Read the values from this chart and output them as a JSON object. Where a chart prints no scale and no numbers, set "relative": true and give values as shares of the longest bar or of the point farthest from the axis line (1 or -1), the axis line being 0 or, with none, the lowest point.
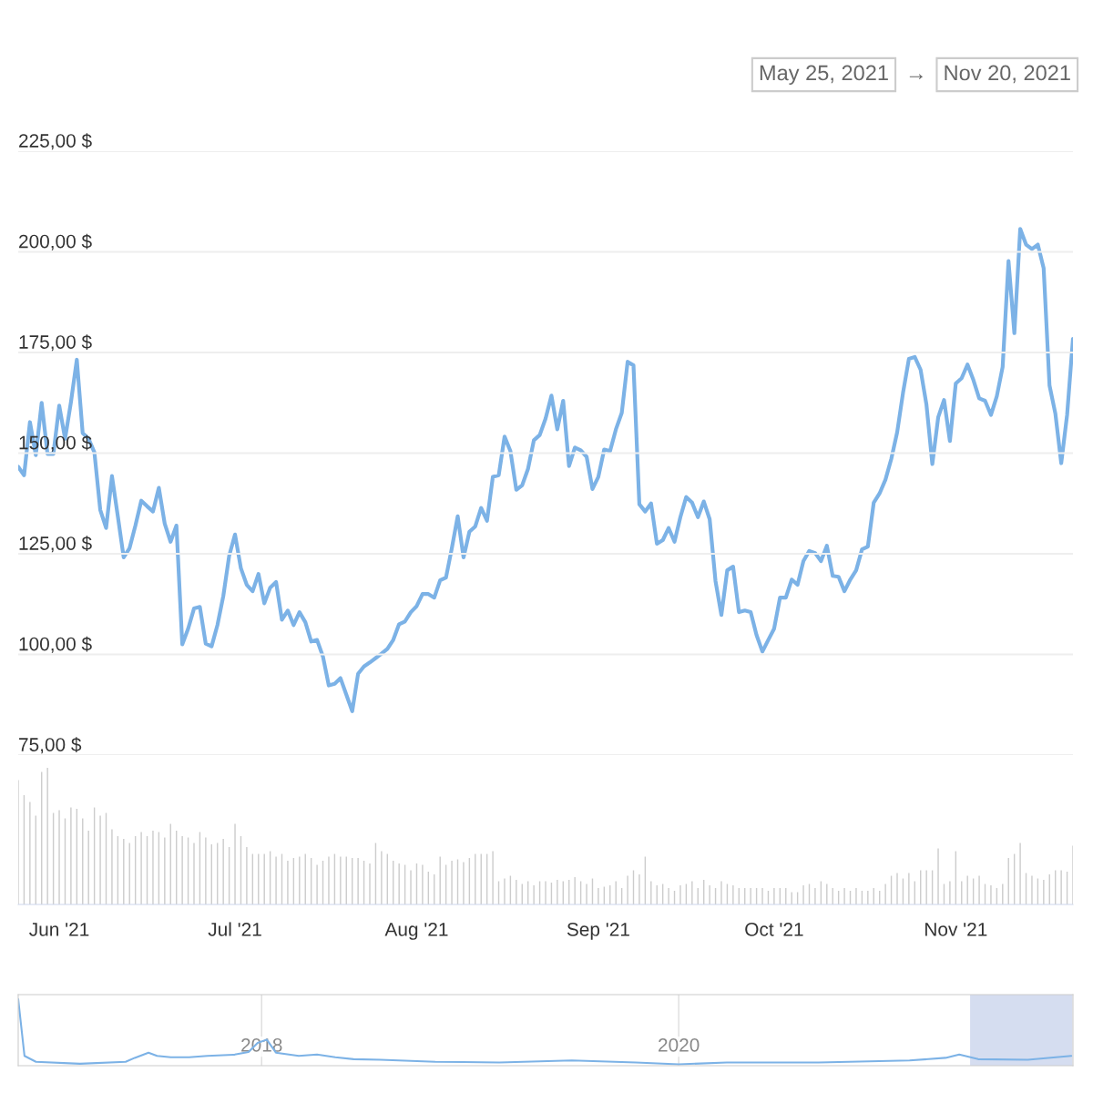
{
  "chart_data": [
    {
      "type": "line",
      "annotations": [
        "May 25, 2021",
        "→",
        "Nov 20, 2021"
      ],
      "x": [
        "2021-05-25",
        "2021-05-26",
        "2021-05-27",
        "2021-05-28",
        "2021-05-29",
        "2021-05-30",
        "2021-05-31",
        "2021-06-01",
        "2021-06-02",
        "2021-06-03",
        "2021-06-04",
        "2021-06-05",
        "2021-06-06",
        "2021-06-07",
        "2021-06-08",
        "2021-06-09",
        "2021-06-10",
        "2021-06-11",
        "2021-06-12",
        "2021-06-13",
        "2021-06-14",
        "2021-06-15",
        "2021-06-16",
        "2021-06-17",
        "2021-06-18",
        "2021-06-19",
        "2021-06-20",
        "2021-06-21",
        "2021-06-22",
        "2021-06-23",
        "2021-06-24",
        "2021-06-25",
        "2021-06-26",
        "2021-06-27",
        "2021-06-28",
        "2021-06-29",
        "2021-06-30",
        "2021-07-01",
        "2021-07-02",
        "2021-07-03",
        "2021-07-04",
        "2021-07-05",
        "2021-07-06",
        "2021-07-07",
        "2021-07-08",
        "2021-07-09",
        "2021-07-10",
        "2021-07-11",
        "2021-07-12",
        "2021-07-13",
        "2021-07-14",
        "2021-07-15",
        "2021-07-16",
        "2021-07-17",
        "2021-07-18",
        "2021-07-19",
        "2021-07-20",
        "2021-07-21",
        "2021-07-22",
        "2021-07-23",
        "2021-07-24",
        "2021-07-25",
        "2021-07-26",
        "2021-07-27",
        "2021-07-28",
        "2021-07-29",
        "2021-07-30",
        "2021-07-31",
        "2021-08-01",
        "2021-08-02",
        "2021-08-03",
        "2021-08-04",
        "2021-08-05",
        "2021-08-06",
        "2021-08-07",
        "2021-08-08",
        "2021-08-09",
        "2021-08-10",
        "2021-08-11",
        "2021-08-12",
        "2021-08-13",
        "2021-08-14",
        "2021-08-15",
        "2021-08-16",
        "2021-08-17",
        "2021-08-18",
        "2021-08-19",
        "2021-08-20",
        "2021-08-21",
        "2021-08-22",
        "2021-08-23",
        "2021-08-24",
        "2021-08-25",
        "2021-08-26",
        "2021-08-27",
        "2021-08-28",
        "2021-08-29",
        "2021-08-30",
        "2021-08-31",
        "2021-09-01",
        "2021-09-02",
        "2021-09-03",
        "2021-09-04",
        "2021-09-05",
        "2021-09-06",
        "2021-09-07",
        "2021-09-08",
        "2021-09-09",
        "2021-09-10",
        "2021-09-11",
        "2021-09-12",
        "2021-09-13",
        "2021-09-14",
        "2021-09-15",
        "2021-09-16",
        "2021-09-17",
        "2021-09-18",
        "2021-09-19",
        "2021-09-20",
        "2021-09-21",
        "2021-09-22",
        "2021-09-23",
        "2021-09-24",
        "2021-09-25",
        "2021-09-26",
        "2021-09-27",
        "2021-09-28",
        "2021-09-29",
        "2021-09-30",
        "2021-10-01",
        "2021-10-02",
        "2021-10-03",
        "2021-10-04",
        "2021-10-05",
        "2021-10-06",
        "2021-10-07",
        "2021-10-08",
        "2021-10-09",
        "2021-10-10",
        "2021-10-11",
        "2021-10-12",
        "2021-10-13",
        "2021-10-14",
        "2021-10-15",
        "2021-10-16",
        "2021-10-17",
        "2021-10-18",
        "2021-10-19",
        "2021-10-20",
        "2021-10-21",
        "2021-10-22",
        "2021-10-23",
        "2021-10-24",
        "2021-10-25",
        "2021-10-26",
        "2021-10-27",
        "2021-10-28",
        "2021-10-29",
        "2021-10-30",
        "2021-10-31",
        "2021-11-01",
        "2021-11-02",
        "2021-11-03",
        "2021-11-04",
        "2021-11-05",
        "2021-11-06",
        "2021-11-07",
        "2021-11-08",
        "2021-11-09",
        "2021-11-10",
        "2021-11-11",
        "2021-11-12",
        "2021-11-13",
        "2021-11-14",
        "2021-11-15",
        "2021-11-16",
        "2021-11-17",
        "2021-11-18",
        "2021-11-19",
        "2021-11-20",
        "2021-11-21"
      ],
      "series": [
        {
          "color": "#7cb2e6",
          "values": [
            146.6,
            144.5,
            157.7,
            149.5,
            162.5,
            149.8,
            149.8,
            161.8,
            153.6,
            162.7,
            173.2,
            155,
            153.6,
            150.2,
            135.9,
            131.4,
            144.3,
            134.3,
            124.1,
            126.4,
            132,
            138.2,
            136.8,
            135.5,
            141.4,
            132.5,
            128,
            132,
            102.5,
            106.4,
            111.4,
            111.8,
            102.7,
            102,
            107.3,
            114.5,
            124.5,
            129.8,
            121.4,
            117.3,
            115.7,
            120,
            112.7,
            116.6,
            118,
            108.6,
            110.9,
            107.3,
            110.5,
            108,
            103.2,
            103.6,
            99.5,
            92.3,
            92.7,
            94.1,
            90,
            85.9,
            95.2,
            97,
            98,
            99.1,
            100.2,
            101.4,
            103.6,
            107.5,
            108.2,
            110.5,
            112,
            115,
            115,
            114.1,
            118.4,
            119.1,
            126.4,
            134.3,
            124.1,
            130.5,
            131.8,
            136.4,
            133.2,
            144.1,
            144.5,
            154.1,
            150.5,
            140.9,
            142,
            146.1,
            153.2,
            154.5,
            158.6,
            164.3,
            155.9,
            163,
            146.8,
            151.4,
            150.7,
            149.1,
            141.1,
            144.1,
            150.9,
            150.5,
            155.9,
            160,
            172.7,
            171.8,
            137.3,
            135.5,
            137.5,
            127.5,
            128.4,
            131.4,
            128,
            134.1,
            139.1,
            137.7,
            134.1,
            138,
            133.6,
            118.2,
            109.8,
            120.9,
            121.8,
            110.5,
            110.9,
            110.5,
            104.8,
            100.7,
            103.6,
            106.4,
            114.1,
            114.1,
            118.6,
            117.3,
            123.2,
            125.7,
            125.2,
            123.2,
            127,
            119.5,
            119.3,
            115.7,
            118.6,
            120.9,
            126.1,
            126.8,
            137.7,
            140,
            143.4,
            148.6,
            155.2,
            165,
            173.4,
            173.9,
            170.7,
            162,
            147.3,
            158.9,
            163.2,
            153,
            167.3,
            168.6,
            172,
            168.2,
            163.6,
            163,
            159.5,
            164.1,
            171.4,
            197.7,
            179.8,
            205.7,
            201.8,
            200.7,
            201.8,
            195.9,
            166.8,
            159.8,
            147.5,
            159.5,
            178.4
          ]
        }
      ],
      "xlim": [
        "2021-05-25",
        "2021-11-21"
      ],
      "ylim": [
        75,
        225
      ],
      "yticks": [
        {
          "value": 75,
          "label": "75,00 $"
        },
        {
          "value": 100,
          "label": "100,00 $"
        },
        {
          "value": 125,
          "label": "125,00 $"
        },
        {
          "value": 150,
          "label": "150,00 $"
        },
        {
          "value": 175,
          "label": "175,00 $"
        },
        {
          "value": 200,
          "label": "200,00 $"
        },
        {
          "value": 225,
          "label": "225,00 $"
        }
      ],
      "grid": "y",
      "tick_labels": "y",
      "line_style": "solid"
    },
    {
      "type": "bar",
      "relative": true,
      "x": [
        "2021-05-25",
        "2021-05-26",
        "2021-05-27",
        "2021-05-28",
        "2021-05-29",
        "2021-05-30",
        "2021-05-31",
        "2021-06-01",
        "2021-06-02",
        "2021-06-03",
        "2021-06-04",
        "2021-06-05",
        "2021-06-06",
        "2021-06-07",
        "2021-06-08",
        "2021-06-09",
        "2021-06-10",
        "2021-06-11",
        "2021-06-12",
        "2021-06-13",
        "2021-06-14",
        "2021-06-15",
        "2021-06-16",
        "2021-06-17",
        "2021-06-18",
        "2021-06-19",
        "2021-06-20",
        "2021-06-21",
        "2021-06-22",
        "2021-06-23",
        "2021-06-24",
        "2021-06-25",
        "2021-06-26",
        "2021-06-27",
        "2021-06-28",
        "2021-06-29",
        "2021-06-30",
        "2021-07-01",
        "2021-07-02",
        "2021-07-03",
        "2021-07-04",
        "2021-07-05",
        "2021-07-06",
        "2021-07-07",
        "2021-07-08",
        "2021-07-09",
        "2021-07-10",
        "2021-07-11",
        "2021-07-12",
        "2021-07-13",
        "2021-07-14",
        "2021-07-15",
        "2021-07-16",
        "2021-07-17",
        "2021-07-18",
        "2021-07-19",
        "2021-07-20",
        "2021-07-21",
        "2021-07-22",
        "2021-07-23",
        "2021-07-24",
        "2021-07-25",
        "2021-07-26",
        "2021-07-27",
        "2021-07-28",
        "2021-07-29",
        "2021-07-30",
        "2021-07-31",
        "2021-08-01",
        "2021-08-02",
        "2021-08-03",
        "2021-08-04",
        "2021-08-05",
        "2021-08-06",
        "2021-08-07",
        "2021-08-08",
        "2021-08-09",
        "2021-08-10",
        "2021-08-11",
        "2021-08-12",
        "2021-08-13",
        "2021-08-14",
        "2021-08-15",
        "2021-08-16",
        "2021-08-17",
        "2021-08-18",
        "2021-08-19",
        "2021-08-20",
        "2021-08-21",
        "2021-08-22",
        "2021-08-23",
        "2021-08-24",
        "2021-08-25",
        "2021-08-26",
        "2021-08-27",
        "2021-08-28",
        "2021-08-29",
        "2021-08-30",
        "2021-08-31",
        "2021-09-01",
        "2021-09-02",
        "2021-09-03",
        "2021-09-04",
        "2021-09-05",
        "2021-09-06",
        "2021-09-07",
        "2021-09-08",
        "2021-09-09",
        "2021-09-10",
        "2021-09-11",
        "2021-09-12",
        "2021-09-13",
        "2021-09-14",
        "2021-09-15",
        "2021-09-16",
        "2021-09-17",
        "2021-09-18",
        "2021-09-19",
        "2021-09-20",
        "2021-09-21",
        "2021-09-22",
        "2021-09-23",
        "2021-09-24",
        "2021-09-25",
        "2021-09-26",
        "2021-09-27",
        "2021-09-28",
        "2021-09-29",
        "2021-09-30",
        "2021-10-01",
        "2021-10-02",
        "2021-10-03",
        "2021-10-04",
        "2021-10-05",
        "2021-10-06",
        "2021-10-07",
        "2021-10-08",
        "2021-10-09",
        "2021-10-10",
        "2021-10-11",
        "2021-10-12",
        "2021-10-13",
        "2021-10-14",
        "2021-10-15",
        "2021-10-16",
        "2021-10-17",
        "2021-10-18",
        "2021-10-19",
        "2021-10-20",
        "2021-10-21",
        "2021-10-22",
        "2021-10-23",
        "2021-10-24",
        "2021-10-25",
        "2021-10-26",
        "2021-10-27",
        "2021-10-28",
        "2021-10-29",
        "2021-10-30",
        "2021-10-31",
        "2021-11-01",
        "2021-11-02",
        "2021-11-03",
        "2021-11-04",
        "2021-11-05",
        "2021-11-06",
        "2021-11-07",
        "2021-11-08",
        "2021-11-09",
        "2021-11-10",
        "2021-11-11",
        "2021-11-12",
        "2021-11-13",
        "2021-11-14",
        "2021-11-15",
        "2021-11-16",
        "2021-11-17",
        "2021-11-18",
        "2021-11-19",
        "2021-11-20",
        "2021-11-21"
      ],
      "series": [
        {
          "color": "#cccccc",
          "values": [
            0.91,
            0.8,
            0.75,
            0.65,
            0.97,
            1,
            0.67,
            0.69,
            0.63,
            0.71,
            0.7,
            0.63,
            0.54,
            0.71,
            0.65,
            0.67,
            0.55,
            0.5,
            0.48,
            0.45,
            0.5,
            0.53,
            0.5,
            0.54,
            0.53,
            0.49,
            0.59,
            0.54,
            0.5,
            0.49,
            0.45,
            0.53,
            0.49,
            0.44,
            0.45,
            0.48,
            0.42,
            0.59,
            0.5,
            0.42,
            0.37,
            0.37,
            0.37,
            0.39,
            0.35,
            0.37,
            0.32,
            0.34,
            0.35,
            0.37,
            0.34,
            0.29,
            0.32,
            0.35,
            0.37,
            0.35,
            0.35,
            0.34,
            0.34,
            0.32,
            0.3,
            0.45,
            0.39,
            0.37,
            0.32,
            0.3,
            0.29,
            0.25,
            0.3,
            0.29,
            0.24,
            0.22,
            0.35,
            0.29,
            0.32,
            0.33,
            0.31,
            0.34,
            0.37,
            0.37,
            0.37,
            0.39,
            0.17,
            0.19,
            0.21,
            0.18,
            0.15,
            0.17,
            0.14,
            0.17,
            0.17,
            0.16,
            0.18,
            0.17,
            0.18,
            0.2,
            0.17,
            0.15,
            0.19,
            0.12,
            0.13,
            0.14,
            0.17,
            0.12,
            0.21,
            0.25,
            0.22,
            0.35,
            0.17,
            0.14,
            0.15,
            0.12,
            0.1,
            0.14,
            0.15,
            0.17,
            0.12,
            0.18,
            0.14,
            0.12,
            0.17,
            0.15,
            0.14,
            0.12,
            0.12,
            0.12,
            0.12,
            0.12,
            0.1,
            0.12,
            0.12,
            0.12,
            0.09,
            0.09,
            0.14,
            0.15,
            0.12,
            0.17,
            0.15,
            0.12,
            0.1,
            0.12,
            0.1,
            0.12,
            0.1,
            0.1,
            0.12,
            0.1,
            0.15,
            0.21,
            0.23,
            0.19,
            0.23,
            0.17,
            0.25,
            0.25,
            0.25,
            0.41,
            0.15,
            0.17,
            0.39,
            0.17,
            0.21,
            0.19,
            0.21,
            0.15,
            0.14,
            0.12,
            0.15,
            0.34,
            0.37,
            0.45,
            0.23,
            0.21,
            0.19,
            0.18,
            0.22,
            0.25,
            0.25,
            0.24,
            0.43
          ]
        }
      ],
      "xlim": [
        "2021-05-25",
        "2021-11-21"
      ],
      "xticks": [
        {
          "value": "2021-06-01",
          "label": "Jun '21"
        },
        {
          "value": "2021-07-01",
          "label": "Jul '21"
        },
        {
          "value": "2021-08-01",
          "label": "Aug '21"
        },
        {
          "value": "2021-09-01",
          "label": "Sep '21"
        },
        {
          "value": "2021-10-01",
          "label": "Oct '21"
        },
        {
          "value": "2021-11-01",
          "label": "Nov '21"
        }
      ],
      "tick_labels": "x"
    },
    {
      "type": "line",
      "relative": true,
      "x": [
        "2016-11-01",
        "2016-11-12",
        "2016-12-02",
        "2017-02-17",
        "2017-05-08",
        "2017-05-24",
        "2017-06-17",
        "2017-07-02",
        "2017-07-26",
        "2017-08-27",
        "2017-09-28",
        "2017-11-15",
        "2017-12-09",
        "2017-12-25",
        "2018-01-10",
        "2018-01-26",
        "2018-03-07",
        "2018-04-08",
        "2018-05-10",
        "2018-06-11",
        "2018-07-28",
        "2018-11-01",
        "2019-02-21",
        "2019-06-28",
        "2019-10-18",
        "2020-01-01",
        "2020-03-25",
        "2020-09-02",
        "2021-02-08",
        "2021-04-12",
        "2021-05-06",
        "2021-06-08",
        "2021-09-03",
        "2021-11-18"
      ],
      "series": [
        {
          "color": "#7cb2e6",
          "values": [
            1,
            0.13,
            0.04,
            0.01,
            0.04,
            0.1,
            0.18,
            0.13,
            0.11,
            0.11,
            0.13,
            0.15,
            0.19,
            0.33,
            0.38,
            0.18,
            0.13,
            0.15,
            0.11,
            0.08,
            0.07,
            0.04,
            0.03,
            0.06,
            0.03,
            0,
            0.03,
            0.03,
            0.06,
            0.1,
            0.15,
            0.08,
            0.07,
            0.13
          ]
        }
      ],
      "xlim": [
        "2016-11-01",
        "2021-11-21"
      ],
      "xticks": [
        {
          "value": "2018-01-01",
          "label": "2018"
        },
        {
          "value": "2020-01-01",
          "label": "2020"
        }
      ],
      "bands": [
        {
          "axis": "x",
          "from": "2021-05-25",
          "to": "2021-11-20",
          "color": "#d5ddf0"
        }
      ],
      "grid": "x",
      "tick_labels": "x"
    }
  ]
}
